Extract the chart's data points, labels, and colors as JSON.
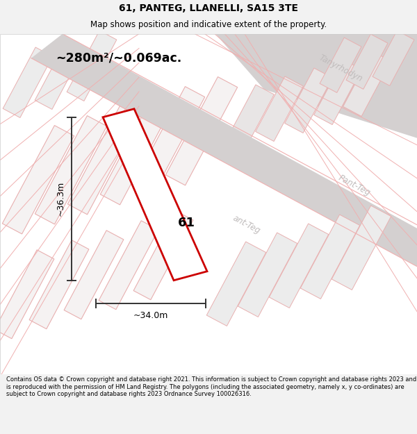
{
  "title": "61, PANTEG, LLANELLI, SA15 3TE",
  "subtitle": "Map shows position and indicative extent of the property.",
  "area_text": "~280m²/~0.069ac.",
  "dim_width": "~34.0m",
  "dim_height": "~36.3m",
  "label_number": "61",
  "footer_text": "Contains OS data © Crown copyright and database right 2021. This information is subject to Crown copyright and database rights 2023 and is reproduced with the permission of HM Land Registry. The polygons (including the associated geometry, namely x, y co-ordinates) are subject to Crown copyright and database rights 2023 Ordnance Survey 100026316.",
  "bg_color": "#f2f2f2",
  "map_bg": "#ffffff",
  "plot_color": "#cc0000",
  "plot_fill": "#ffffff",
  "figsize": [
    6.0,
    6.25
  ],
  "dpi": 100
}
